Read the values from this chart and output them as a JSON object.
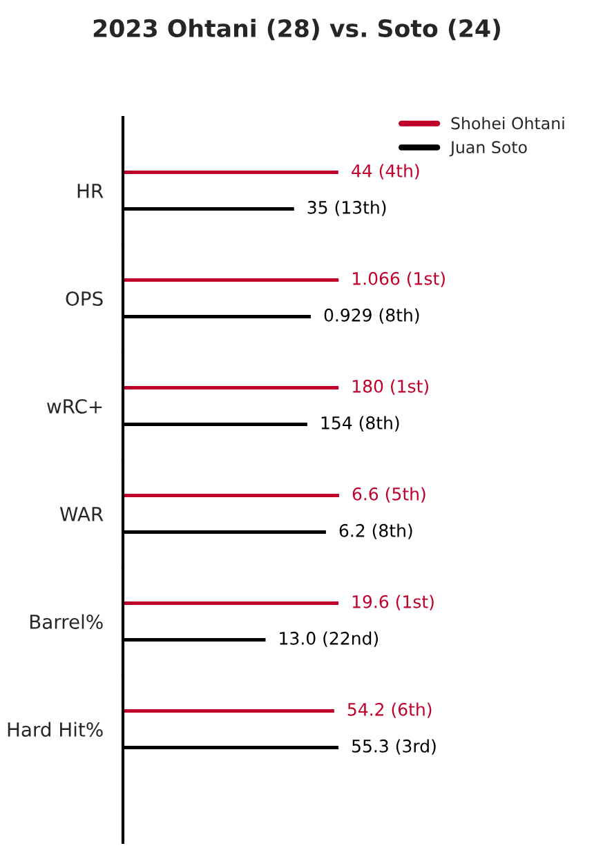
{
  "chart_data": [
    {
      "type": "bar",
      "orientation": "horizontal",
      "title": "2023 Ohtani (28) vs. Soto (24)",
      "categories": [
        "HR"
      ],
      "xlim": [
        0,
        93
      ],
      "tick_labels": "y",
      "legend": "top right",
      "series": [
        {
          "name": "Shohei Ohtani",
          "color": "#c0002a",
          "values": [
            44
          ],
          "value_labels": [
            "44 (4th)"
          ]
        },
        {
          "name": "Juan Soto",
          "color": "#000000",
          "values": [
            35
          ],
          "value_labels": [
            "35 (13th)"
          ]
        }
      ]
    },
    {
      "type": "bar",
      "orientation": "horizontal",
      "categories": [
        "OPS"
      ],
      "xlim": [
        0,
        2.25
      ],
      "tick_labels": "y",
      "series": [
        {
          "color": "#c0002a",
          "values": [
            1.066
          ],
          "value_labels": [
            "1.066 (1st)"
          ]
        },
        {
          "color": "#000000",
          "values": [
            0.929
          ],
          "value_labels": [
            "0.929 (8th)"
          ]
        }
      ]
    },
    {
      "type": "bar",
      "orientation": "horizontal",
      "categories": [
        "wRC+"
      ],
      "xlim": [
        0,
        380
      ],
      "tick_labels": "y",
      "series": [
        {
          "color": "#c0002a",
          "values": [
            180
          ],
          "value_labels": [
            "180 (1st)"
          ]
        },
        {
          "color": "#000000",
          "values": [
            154
          ],
          "value_labels": [
            "154 (8th)"
          ]
        }
      ]
    },
    {
      "type": "bar",
      "orientation": "horizontal",
      "categories": [
        "WAR"
      ],
      "xlim": [
        0,
        13.9
      ],
      "tick_labels": "y",
      "series": [
        {
          "color": "#c0002a",
          "values": [
            6.6
          ],
          "value_labels": [
            "6.6 (5th)"
          ]
        },
        {
          "color": "#000000",
          "values": [
            6.2
          ],
          "value_labels": [
            "6.2 (8th)"
          ]
        }
      ]
    },
    {
      "type": "bar",
      "orientation": "horizontal",
      "categories": [
        "Barrel%"
      ],
      "xlim": [
        0,
        41.4
      ],
      "tick_labels": "y",
      "series": [
        {
          "color": "#c0002a",
          "values": [
            19.6
          ],
          "value_labels": [
            "19.6 (1st)"
          ]
        },
        {
          "color": "#000000",
          "values": [
            13.0
          ],
          "value_labels": [
            "13.0 (22nd)"
          ]
        }
      ]
    },
    {
      "type": "bar",
      "orientation": "horizontal",
      "categories": [
        "Hard Hit%"
      ],
      "xlim": [
        0,
        116.8
      ],
      "tick_labels": "y",
      "series": [
        {
          "color": "#c0002a",
          "values": [
            54.2
          ],
          "value_labels": [
            "54.2 (6th)"
          ]
        },
        {
          "color": "#000000",
          "values": [
            55.3
          ],
          "value_labels": [
            "55.3 (3rd)"
          ]
        }
      ]
    }
  ]
}
